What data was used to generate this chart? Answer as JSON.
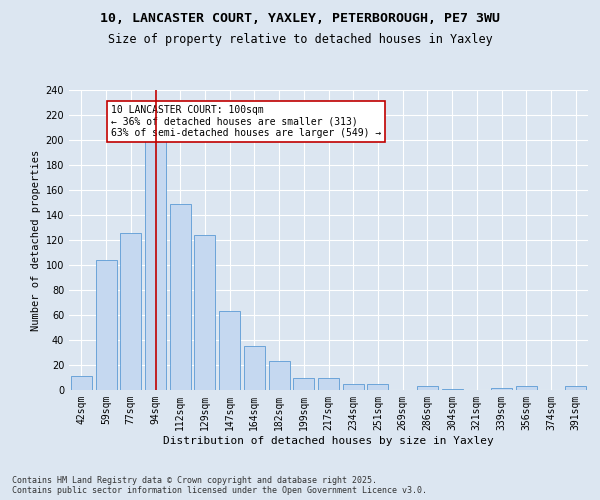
{
  "title1": "10, LANCASTER COURT, YAXLEY, PETERBOROUGH, PE7 3WU",
  "title2": "Size of property relative to detached houses in Yaxley",
  "xlabel": "Distribution of detached houses by size in Yaxley",
  "ylabel": "Number of detached properties",
  "categories": [
    "42sqm",
    "59sqm",
    "77sqm",
    "94sqm",
    "112sqm",
    "129sqm",
    "147sqm",
    "164sqm",
    "182sqm",
    "199sqm",
    "217sqm",
    "234sqm",
    "251sqm",
    "269sqm",
    "286sqm",
    "304sqm",
    "321sqm",
    "339sqm",
    "356sqm",
    "374sqm",
    "391sqm"
  ],
  "values": [
    11,
    104,
    126,
    201,
    149,
    124,
    63,
    35,
    23,
    10,
    10,
    5,
    5,
    0,
    3,
    1,
    0,
    2,
    3,
    0,
    3
  ],
  "bar_color": "#c5d8f0",
  "bar_edge_color": "#5b9bd5",
  "highlight_index": 3,
  "highlight_color": "#c00000",
  "annotation_text": "10 LANCASTER COURT: 100sqm\n← 36% of detached houses are smaller (313)\n63% of semi-detached houses are larger (549) →",
  "annotation_box_color": "#ffffff",
  "annotation_box_edge": "#c00000",
  "ylim": [
    0,
    240
  ],
  "yticks": [
    0,
    20,
    40,
    60,
    80,
    100,
    120,
    140,
    160,
    180,
    200,
    220,
    240
  ],
  "bg_color": "#dce6f1",
  "plot_bg_color": "#dce6f1",
  "footer": "Contains HM Land Registry data © Crown copyright and database right 2025.\nContains public sector information licensed under the Open Government Licence v3.0.",
  "title1_fontsize": 9.5,
  "title2_fontsize": 8.5,
  "xlabel_fontsize": 8,
  "ylabel_fontsize": 7.5,
  "tick_fontsize": 7,
  "annotation_fontsize": 7,
  "footer_fontsize": 6
}
